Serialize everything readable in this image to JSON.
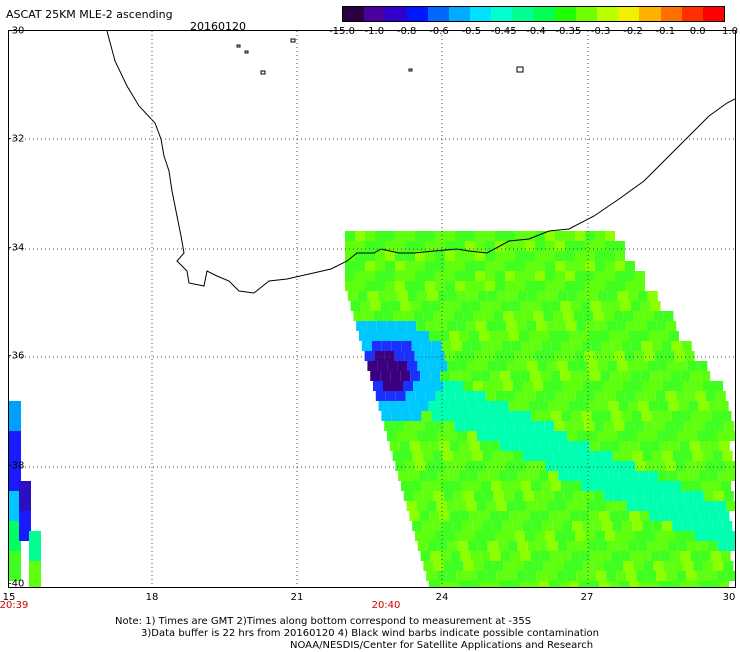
{
  "header": {
    "title": "ASCAT 25KM MLE-2 ascending",
    "date": "20160120"
  },
  "colorbar": {
    "labels": [
      "-15.0",
      "-1.0",
      "-0.8",
      "-0.6",
      "-0.5",
      "-0.45",
      "-0.4",
      "-0.35",
      "-0.3",
      "-0.2",
      "-0.1",
      "0.0",
      "1.0"
    ],
    "colors": [
      "#3a0050",
      "#4b00a0",
      "#1a1aff",
      "#0066ff",
      "#00b4ff",
      "#00ffff",
      "#00ff9c",
      "#00ff3c",
      "#3cff00",
      "#a0ff00",
      "#ffd000",
      "#ff7000",
      "#ff0000"
    ]
  },
  "axes": {
    "y_labels": [
      "-30",
      "-32",
      "-34",
      "-36",
      "-38",
      "-40"
    ],
    "x_labels": [
      "15",
      "18",
      "21",
      "24",
      "27",
      "30"
    ]
  },
  "times": [
    "20:39",
    "20:40"
  ],
  "notes": [
    "Note: 1) Times are GMT 2)Times along bottom correspond to measurement at -35S",
    "3)Data buffer is 22 hrs from 20160120 4) Black wind barbs indicate possible contamination",
    "NOAA/NESDIS/Center for Satellite Applications and Research"
  ]
}
